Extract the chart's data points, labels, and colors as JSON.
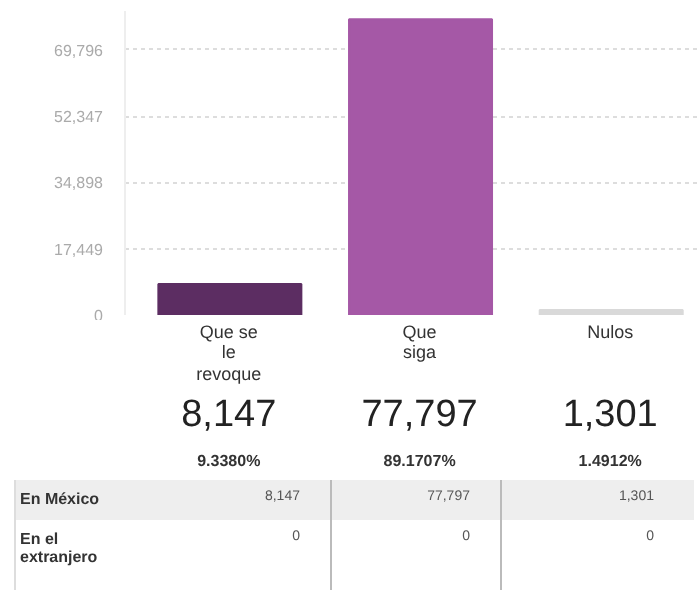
{
  "chart_data": {
    "type": "bar",
    "categories": [
      "Que se le revoque",
      "Que siga",
      "Nulos"
    ],
    "values": [
      8147,
      77797,
      1301
    ],
    "colors": [
      "#5c2d62",
      "#a558a6",
      "#d9d9d9"
    ],
    "value_labels": [
      "8,147",
      "77,797",
      "1,301"
    ],
    "ylim": [
      0,
      80000
    ],
    "yticks": [
      0,
      {
        "value": 17449,
        "label": "17,449"
      },
      {
        "value": 34898,
        "label": "34,898"
      },
      {
        "value": 52347,
        "label": "52,347"
      },
      {
        "value": 69796,
        "label": "69,796"
      }
    ],
    "grid": "y",
    "annotations": [
      "9.3380%",
      "89.1707%",
      "1.4912%",
      "En México",
      "8,147",
      "77,797",
      "1,301",
      "En el extranjero",
      "0",
      "0",
      "0"
    ]
  }
}
